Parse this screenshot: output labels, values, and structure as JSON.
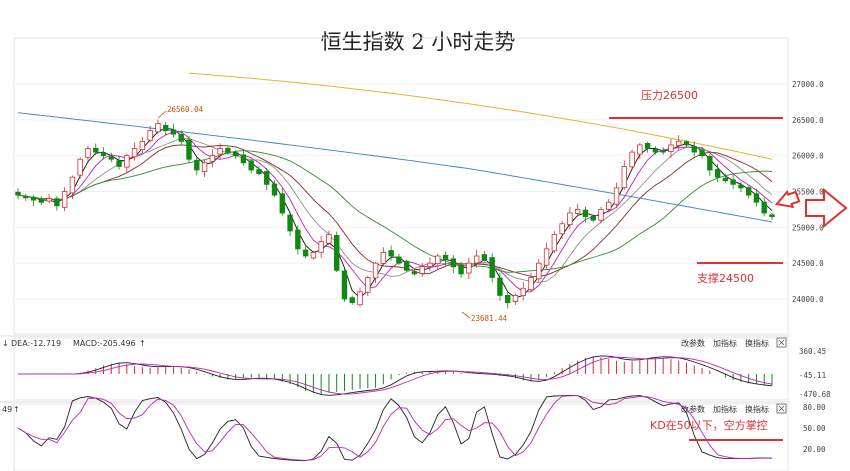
{
  "chart_data": {
    "type": "candlestick",
    "title": "恒生指数 2 小时走势",
    "price_ticks": [
      "27000.0",
      "26500.0",
      "26000.0",
      "25500.0",
      "25000.0",
      "24500.0",
      "24000.0"
    ],
    "price_tick_values": [
      27000,
      26500,
      26000,
      25500,
      25000,
      24500,
      24000
    ],
    "ylim": [
      23600,
      27400
    ],
    "high_label": "26560.04",
    "low_label": "23681.44",
    "high_value": 26560,
    "low_value": 23681,
    "annotations": {
      "resistance": {
        "label": "压力26500",
        "value": 26500
      },
      "support": {
        "label": "支撑24500",
        "value": 24500
      },
      "kd_note": "KD在50以下，空方掌控"
    },
    "macd": {
      "header_dea": "DEA:-12.719",
      "header_macd": "MACD:-205.496",
      "ticks": [
        "360.45",
        "-45.11",
        "-470.68"
      ],
      "buttons": [
        "改参数",
        "加指标",
        "换指标"
      ]
    },
    "kd": {
      "header": "49",
      "ticks": [
        "80.00",
        "50.00",
        "20.00"
      ],
      "buttons": [
        "改参数",
        "加指标",
        "换指标"
      ]
    },
    "close_series": [
      25450,
      25420,
      25380,
      25350,
      25400,
      25300,
      25500,
      25700,
      25950,
      26100,
      26050,
      26000,
      25950,
      25850,
      26000,
      26100,
      26200,
      26350,
      26450,
      26350,
      26300,
      26200,
      25950,
      25800,
      25900,
      26000,
      26100,
      26050,
      26000,
      25900,
      25800,
      25750,
      25600,
      25450,
      25200,
      24950,
      24700,
      24600,
      24650,
      24800,
      24900,
      24400,
      24000,
      23950,
      24100,
      24300,
      24500,
      24650,
      24600,
      24500,
      24400,
      24350,
      24450,
      24500,
      24600,
      24550,
      24450,
      24350,
      24500,
      24600,
      24550,
      24300,
      24050,
      23950,
      24050,
      24150,
      24300,
      24500,
      24700,
      24900,
      25050,
      25200,
      25250,
      25150,
      25100,
      25250,
      25350,
      25550,
      25850,
      26050,
      26150,
      26100,
      26050,
      26050,
      26150,
      26200,
      26150,
      26050,
      26000,
      25800,
      25700,
      25650,
      25600,
      25550,
      25450,
      25350,
      25200,
      25150
    ],
    "ma_yellow_range": [
      27150,
      25950
    ],
    "ma_blue_range": [
      26600,
      25200
    ]
  },
  "colors": {
    "up": "#d03030",
    "down": "#118811",
    "ma5": "#111111",
    "ma10": "#c020c0",
    "ma20": "#909090",
    "ma30": "#8b2a2a",
    "ma60": "#2f8f2f",
    "ma120": "#3a7fcf",
    "ma250": "#f0b030",
    "annotation": "#e03030"
  },
  "arrow_icon": "right-arrow-icon"
}
